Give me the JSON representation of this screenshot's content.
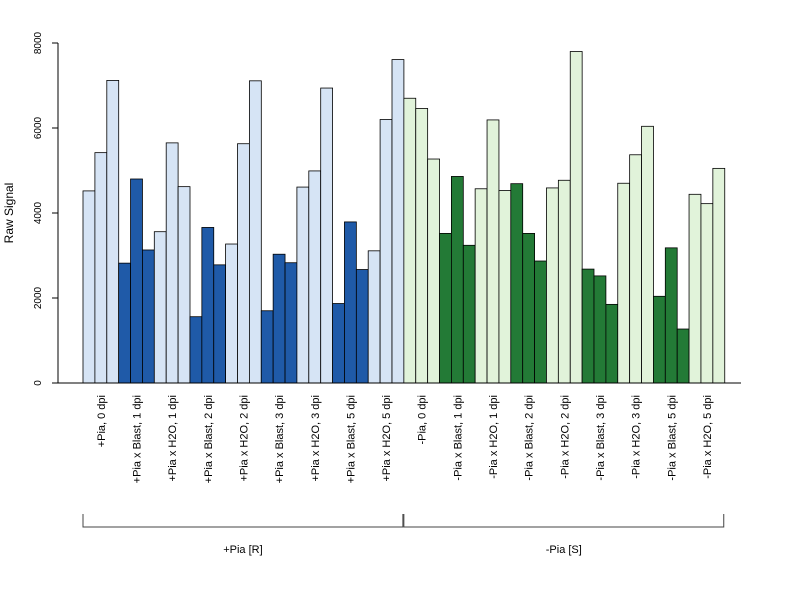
{
  "chart_data": {
    "type": "bar",
    "ylabel": "Raw Signal",
    "xlabel": "",
    "title": "",
    "ylim": [
      0,
      8000
    ],
    "yticks": [
      0,
      2000,
      4000,
      6000,
      8000
    ],
    "grid": false,
    "categories": [
      "+Pia, 0 dpi",
      "+Pia x Blast, 1 dpi",
      "+Pia x H2O, 1 dpi",
      "+Pia x Blast, 2 dpi",
      "+Pia x H2O, 2 dpi",
      "+Pia x Blast, 3 dpi",
      "+Pia x H2O, 3 dpi",
      "+Pia x Blast, 5 dpi",
      "+Pia x H2O, 5 dpi",
      "-Pia, 0 dpi",
      "-Pia x Blast, 1 dpi",
      "-Pia x H2O, 1 dpi",
      "-Pia x Blast, 2 dpi",
      "-Pia x H2O, 2 dpi",
      "-Pia x Blast, 3 dpi",
      "-Pia x H2O, 3 dpi",
      "-Pia x Blast, 5 dpi",
      "-Pia x H2O, 5 dpi"
    ],
    "replicates": [
      [
        4520,
        5420,
        7120
      ],
      [
        2820,
        4800,
        3130
      ],
      [
        3560,
        5650,
        4620
      ],
      [
        1560,
        3660,
        2780
      ],
      [
        3270,
        5630,
        7110
      ],
      [
        1700,
        3030,
        2830
      ],
      [
        4610,
        4990,
        6940
      ],
      [
        1870,
        3790,
        2670
      ],
      [
        3110,
        6200,
        7610
      ],
      [
        6700,
        6460,
        5270
      ],
      [
        3520,
        4860,
        3240
      ],
      [
        4570,
        6190,
        4530
      ],
      [
        4690,
        3520,
        2870
      ],
      [
        4590,
        4770,
        7800
      ],
      [
        2680,
        2520,
        1850
      ],
      [
        4700,
        5370,
        6040
      ],
      [
        2040,
        3180,
        1270
      ],
      [
        4440,
        4220,
        5050
      ]
    ],
    "fill_colors": [
      "#d6e4f5",
      "#1f5aa8",
      "#d6e4f5",
      "#1f5aa8",
      "#d6e4f5",
      "#1f5aa8",
      "#d6e4f5",
      "#1f5aa8",
      "#d6e4f5",
      "#e1f3da",
      "#237a36",
      "#e1f3da",
      "#237a36",
      "#e1f3da",
      "#237a36",
      "#e1f3da",
      "#237a36",
      "#e1f3da"
    ],
    "groups": [
      {
        "label": "+Pia [R]",
        "start_index": 0,
        "end_index": 8
      },
      {
        "label": "-Pia [S]",
        "start_index": 9,
        "end_index": 17
      }
    ]
  }
}
